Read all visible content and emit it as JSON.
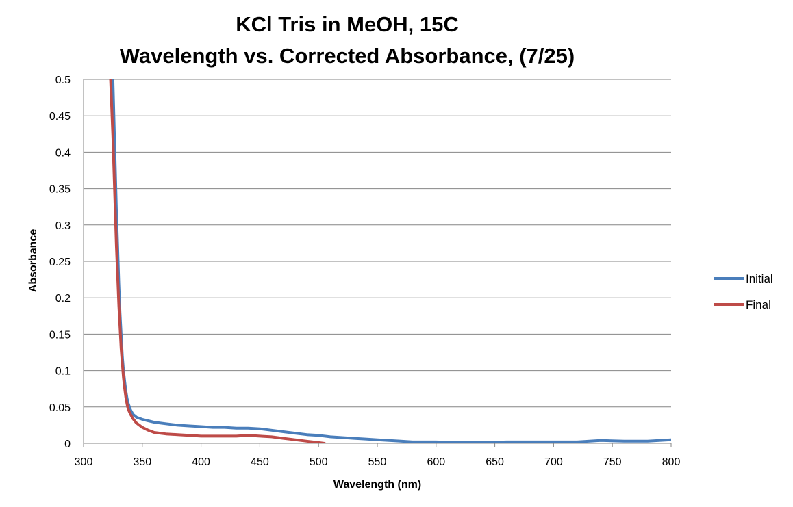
{
  "chart_data": {
    "type": "line",
    "title_lines": [
      "KCl Tris in MeOH, 15C",
      "Wavelength vs. Corrected Absorbance, (7/25)"
    ],
    "xlabel": "Wavelength (nm)",
    "ylabel": "Absorbance",
    "xlim": [
      300,
      800
    ],
    "ylim": [
      0,
      0.5
    ],
    "x_ticks": [
      "300",
      "350",
      "400",
      "450",
      "500",
      "550",
      "600",
      "650",
      "700",
      "750",
      "800"
    ],
    "y_ticks": [
      "0",
      "0.05",
      "0.1",
      "0.15",
      "0.2",
      "0.25",
      "0.3",
      "0.35",
      "0.4",
      "0.45",
      "0.5"
    ],
    "grid": "horizontal",
    "legend_position": "right",
    "series": [
      {
        "name": "Initial",
        "color": "#4a7ebb",
        "x": [
          325,
          326,
          327,
          328,
          329,
          330,
          331,
          332,
          333,
          334,
          335,
          336,
          337,
          338,
          340,
          342,
          345,
          350,
          355,
          360,
          370,
          380,
          390,
          400,
          410,
          420,
          430,
          440,
          450,
          460,
          470,
          480,
          490,
          500,
          510,
          520,
          530,
          540,
          550,
          560,
          570,
          580,
          600,
          620,
          640,
          660,
          680,
          700,
          720,
          740,
          760,
          780,
          800
        ],
        "y": [
          0.5,
          0.44,
          0.38,
          0.32,
          0.27,
          0.22,
          0.18,
          0.15,
          0.12,
          0.1,
          0.085,
          0.072,
          0.062,
          0.055,
          0.046,
          0.04,
          0.036,
          0.033,
          0.031,
          0.029,
          0.027,
          0.025,
          0.024,
          0.023,
          0.022,
          0.022,
          0.021,
          0.021,
          0.02,
          0.018,
          0.016,
          0.014,
          0.012,
          0.011,
          0.009,
          0.008,
          0.007,
          0.006,
          0.005,
          0.004,
          0.003,
          0.002,
          0.002,
          0.001,
          0.001,
          0.002,
          0.002,
          0.002,
          0.002,
          0.004,
          0.003,
          0.003,
          0.005
        ]
      },
      {
        "name": "Final",
        "color": "#be4b48",
        "x": [
          323,
          324,
          325,
          326,
          327,
          328,
          329,
          330,
          331,
          332,
          333,
          334,
          335,
          336,
          337,
          338,
          340,
          342,
          345,
          350,
          355,
          360,
          370,
          380,
          390,
          400,
          410,
          420,
          430,
          440,
          450,
          460,
          470,
          480,
          490,
          500,
          505
        ],
        "y": [
          0.5,
          0.46,
          0.42,
          0.37,
          0.32,
          0.27,
          0.23,
          0.19,
          0.16,
          0.13,
          0.11,
          0.09,
          0.075,
          0.063,
          0.054,
          0.047,
          0.04,
          0.034,
          0.028,
          0.022,
          0.018,
          0.015,
          0.013,
          0.012,
          0.011,
          0.01,
          0.01,
          0.01,
          0.01,
          0.011,
          0.01,
          0.009,
          0.007,
          0.005,
          0.003,
          0.001,
          0
        ]
      }
    ]
  }
}
